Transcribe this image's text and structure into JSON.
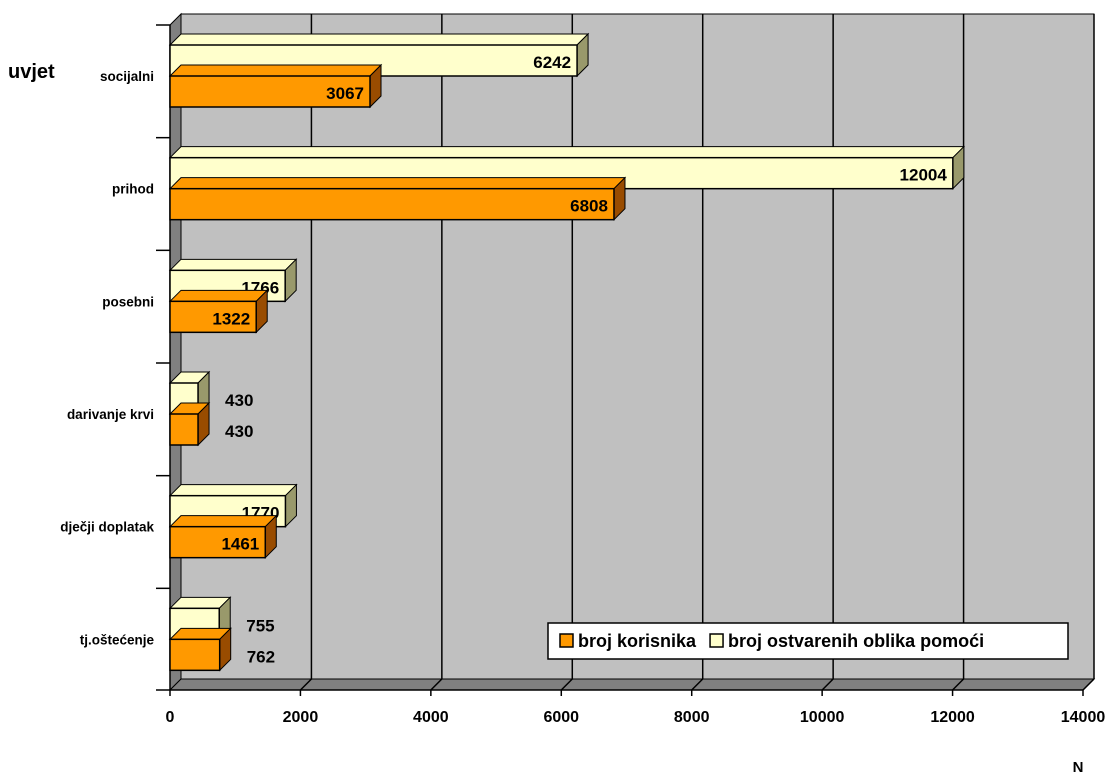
{
  "chart_data": {
    "type": "bar",
    "orientation": "horizontal",
    "three_d": true,
    "categories": [
      "socijalni",
      "prihod",
      "posebni",
      "darivanje krvi",
      "dječji doplatak",
      "tj.oštećenje"
    ],
    "series": [
      {
        "name": "broj ostvarenih oblika pomoći",
        "values": [
          6242,
          12004,
          1766,
          430,
          1770,
          755
        ],
        "color": "#ffffcc"
      },
      {
        "name": "broj korisnika",
        "values": [
          3067,
          6808,
          1322,
          430,
          1461,
          762
        ],
        "color": "#ff9900"
      }
    ],
    "legend_order": [
      1,
      0
    ],
    "ylabel": "uvjet",
    "xlabel": "N",
    "xlim": [
      0,
      14000
    ],
    "xticks": [
      0,
      2000,
      4000,
      6000,
      8000,
      10000,
      12000,
      14000
    ],
    "grid": true,
    "legend_position": "bottom-right",
    "colors": {
      "wall": "#c0c0c0",
      "floor": "#808080",
      "grid": "#000000"
    }
  }
}
